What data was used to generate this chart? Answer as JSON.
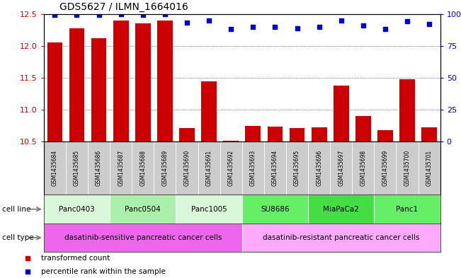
{
  "title": "GDS5627 / ILMN_1664016",
  "samples": [
    "GSM1435684",
    "GSM1435685",
    "GSM1435686",
    "GSM1435687",
    "GSM1435688",
    "GSM1435689",
    "GSM1435690",
    "GSM1435691",
    "GSM1435692",
    "GSM1435693",
    "GSM1435694",
    "GSM1435695",
    "GSM1435696",
    "GSM1435697",
    "GSM1435698",
    "GSM1435699",
    "GSM1435700",
    "GSM1435701"
  ],
  "bar_values": [
    12.05,
    12.28,
    12.12,
    12.4,
    12.35,
    12.4,
    10.72,
    11.45,
    10.52,
    10.75,
    10.74,
    10.72,
    10.73,
    11.38,
    10.9,
    10.68,
    11.48,
    10.73
  ],
  "percentile_values": [
    99,
    99,
    99,
    100,
    99,
    100,
    93,
    95,
    88,
    90,
    90,
    89,
    90,
    95,
    91,
    88,
    94,
    92
  ],
  "ylim_left": [
    10.5,
    12.5
  ],
  "ylim_right": [
    0,
    100
  ],
  "yticks_left": [
    10.5,
    11.0,
    11.5,
    12.0,
    12.5
  ],
  "yticks_right": [
    0,
    25,
    50,
    75,
    100
  ],
  "bar_color": "#cc0000",
  "dot_color": "#0000cc",
  "cell_lines": [
    {
      "label": "Panc0403",
      "start": 0,
      "end": 2,
      "color": "#d9f7d9"
    },
    {
      "label": "Panc0504",
      "start": 3,
      "end": 5,
      "color": "#aaf0aa"
    },
    {
      "label": "Panc1005",
      "start": 6,
      "end": 8,
      "color": "#d9f7d9"
    },
    {
      "label": "SU8686",
      "start": 9,
      "end": 11,
      "color": "#66ee66"
    },
    {
      "label": "MiaPaCa2",
      "start": 12,
      "end": 14,
      "color": "#44dd44"
    },
    {
      "label": "Panc1",
      "start": 15,
      "end": 17,
      "color": "#66ee66"
    }
  ],
  "cell_types": [
    {
      "label": "dasatinib-sensitive pancreatic cancer cells",
      "start": 0,
      "end": 8,
      "color": "#ee66ee"
    },
    {
      "label": "dasatinib-resistant pancreatic cancer cells",
      "start": 9,
      "end": 17,
      "color": "#ffaaff"
    }
  ],
  "legend_items": [
    {
      "label": "transformed count",
      "color": "#cc0000",
      "marker": "s"
    },
    {
      "label": "percentile rank within the sample",
      "color": "#0000cc",
      "marker": "s"
    }
  ],
  "sample_bg_color": "#cccccc",
  "bg_color": "#ffffff",
  "grid_color": "#444444"
}
